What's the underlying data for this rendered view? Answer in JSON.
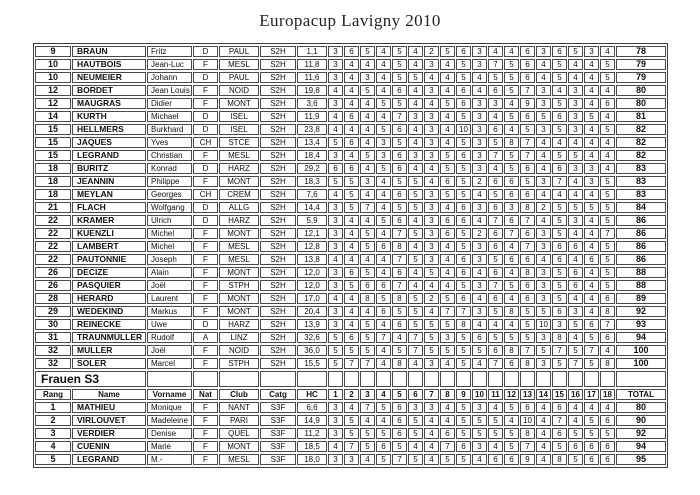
{
  "title": "Europacup Lavigny 2010",
  "columns": [
    "Rang",
    "Name",
    "Vorname",
    "Nat",
    "Club",
    "Catg",
    "HC",
    "1",
    "2",
    "3",
    "4",
    "5",
    "6",
    "7",
    "8",
    "9",
    "10",
    "11",
    "12",
    "13",
    "14",
    "15",
    "16",
    "17",
    "18",
    "TOTAL"
  ],
  "section_frauen": {
    "label": "Frauen S3"
  },
  "colors": {
    "border": "#4a4a4a",
    "text": "#101010",
    "background": "#ffffff"
  },
  "men_rows": [
    {
      "rank": "9",
      "name": "BRAUN",
      "vorname": "Fritz",
      "nat": "D",
      "club": "PAUL",
      "catg": "S2H",
      "hc": "1,1",
      "scores": [
        3,
        6,
        5,
        4,
        5,
        4,
        2,
        5,
        6,
        3,
        4,
        4,
        6,
        3,
        6,
        5,
        3,
        4
      ],
      "total": "78"
    },
    {
      "rank": "10",
      "name": "HAUTBOIS",
      "vorname": "Jean-Luc",
      "nat": "F",
      "club": "MESL",
      "catg": "S2H",
      "hc": "11,8",
      "scores": [
        3,
        4,
        4,
        4,
        5,
        4,
        3,
        4,
        5,
        3,
        7,
        5,
        6,
        4,
        5,
        4,
        4,
        5
      ],
      "total": "79"
    },
    {
      "rank": "10",
      "name": "NEUMEIER",
      "vorname": "Johann",
      "nat": "D",
      "club": "PAUL",
      "catg": "S2H",
      "hc": "11,6",
      "scores": [
        3,
        4,
        3,
        4,
        5,
        5,
        4,
        4,
        5,
        4,
        5,
        5,
        6,
        4,
        5,
        4,
        4,
        5
      ],
      "total": "79"
    },
    {
      "rank": "12",
      "name": "BORDET",
      "vorname": "Jean Louis",
      "nat": "F",
      "club": "NOID",
      "catg": "S2H",
      "hc": "19,8",
      "scores": [
        4,
        4,
        5,
        4,
        6,
        4,
        3,
        4,
        6,
        4,
        6,
        5,
        7,
        3,
        4,
        3,
        4,
        4
      ],
      "total": "80"
    },
    {
      "rank": "12",
      "name": "MAUGRAS",
      "vorname": "Didier",
      "nat": "F",
      "club": "MONT",
      "catg": "S2H",
      "hc": "3,6",
      "scores": [
        3,
        4,
        4,
        5,
        5,
        4,
        4,
        5,
        6,
        3,
        3,
        4,
        9,
        3,
        5,
        3,
        4,
        6
      ],
      "total": "80"
    },
    {
      "rank": "14",
      "name": "KURTH",
      "vorname": "Michael",
      "nat": "D",
      "club": "ISEL",
      "catg": "S2H",
      "hc": "11,9",
      "scores": [
        4,
        6,
        4,
        4,
        7,
        3,
        3,
        4,
        5,
        3,
        4,
        5,
        6,
        5,
        6,
        3,
        5,
        4
      ],
      "total": "81"
    },
    {
      "rank": "15",
      "name": "HELLMERS",
      "vorname": "Burkhard",
      "nat": "D",
      "club": "ISEL",
      "catg": "S2H",
      "hc": "23,8",
      "scores": [
        4,
        4,
        4,
        5,
        6,
        4,
        3,
        4,
        10,
        3,
        6,
        4,
        5,
        3,
        5,
        3,
        4,
        5
      ],
      "total": "82"
    },
    {
      "rank": "15",
      "name": "JAQUES",
      "vorname": "Yves",
      "nat": "CH",
      "club": "STCE",
      "catg": "S2H",
      "hc": "13,4",
      "scores": [
        5,
        6,
        4,
        3,
        5,
        4,
        3,
        4,
        5,
        3,
        5,
        8,
        7,
        4,
        4,
        4,
        4,
        4
      ],
      "total": "82"
    },
    {
      "rank": "15",
      "name": "LEGRAND",
      "vorname": "Christian",
      "nat": "F",
      "club": "MESL",
      "catg": "S2H",
      "hc": "18,4",
      "scores": [
        3,
        4,
        5,
        3,
        6,
        3,
        3,
        5,
        6,
        3,
        7,
        5,
        7,
        4,
        5,
        5,
        4,
        4
      ],
      "total": "82"
    },
    {
      "rank": "18",
      "name": "BURITZ",
      "vorname": "Konrad",
      "nat": "D",
      "club": "HARZ",
      "catg": "S2H",
      "hc": "29,2",
      "scores": [
        6,
        6,
        4,
        5,
        6,
        4,
        4,
        5,
        5,
        3,
        4,
        5,
        6,
        4,
        6,
        3,
        3,
        4
      ],
      "total": "83"
    },
    {
      "rank": "18",
      "name": "JEANNIN",
      "vorname": "Philippe",
      "nat": "F",
      "club": "MONT",
      "catg": "S2H",
      "hc": "18,3",
      "scores": [
        5,
        5,
        3,
        4,
        5,
        5,
        4,
        6,
        5,
        2,
        6,
        6,
        5,
        3,
        7,
        4,
        3,
        5
      ],
      "total": "83"
    },
    {
      "rank": "18",
      "name": "MEYLAN",
      "vorname": "Georges",
      "nat": "CH",
      "club": "CREM",
      "catg": "S2H",
      "hc": "7,6",
      "scores": [
        4,
        5,
        4,
        4,
        6,
        5,
        3,
        5,
        5,
        4,
        5,
        6,
        6,
        4,
        4,
        4,
        4,
        5
      ],
      "total": "83"
    },
    {
      "rank": "21",
      "name": "FLACH",
      "vorname": "Wolfgang",
      "nat": "D",
      "club": "ALLG",
      "catg": "S2H",
      "hc": "14,4",
      "scores": [
        3,
        5,
        7,
        4,
        5,
        5,
        3,
        4,
        6,
        3,
        6,
        3,
        8,
        2,
        5,
        5,
        5,
        5
      ],
      "total": "84"
    },
    {
      "rank": "22",
      "name": "KRAMER",
      "vorname": "Ulrich",
      "nat": "D",
      "club": "HARZ",
      "catg": "S2H",
      "hc": "5,9",
      "scores": [
        3,
        4,
        4,
        5,
        6,
        4,
        3,
        6,
        6,
        4,
        7,
        6,
        7,
        4,
        5,
        3,
        4,
        5
      ],
      "total": "86"
    },
    {
      "rank": "22",
      "name": "KUENZLI",
      "vorname": "Michel",
      "nat": "F",
      "club": "MONT",
      "catg": "S2H",
      "hc": "12,1",
      "scores": [
        3,
        4,
        5,
        4,
        7,
        5,
        3,
        6,
        5,
        2,
        6,
        7,
        6,
        3,
        5,
        4,
        4,
        7
      ],
      "total": "86"
    },
    {
      "rank": "22",
      "name": "LAMBERT",
      "vorname": "Michel",
      "nat": "F",
      "club": "MESL",
      "catg": "S2H",
      "hc": "12,8",
      "scores": [
        3,
        4,
        5,
        6,
        8,
        4,
        3,
        4,
        5,
        3,
        6,
        4,
        7,
        3,
        6,
        6,
        4,
        5
      ],
      "total": "86"
    },
    {
      "rank": "22",
      "name": "PAUTONNIE",
      "vorname": "Joseph",
      "nat": "F",
      "club": "MESL",
      "catg": "S2H",
      "hc": "13,8",
      "scores": [
        4,
        4,
        4,
        4,
        7,
        5,
        3,
        4,
        6,
        3,
        5,
        6,
        6,
        4,
        6,
        4,
        6,
        5
      ],
      "total": "86"
    },
    {
      "rank": "26",
      "name": "DECIZE",
      "vorname": "Alain",
      "nat": "F",
      "club": "MONT",
      "catg": "S2H",
      "hc": "12,0",
      "scores": [
        3,
        6,
        5,
        4,
        6,
        4,
        5,
        4,
        6,
        4,
        6,
        4,
        8,
        3,
        5,
        6,
        4,
        5
      ],
      "total": "88"
    },
    {
      "rank": "26",
      "name": "PASQUIER",
      "vorname": "Joël",
      "nat": "F",
      "club": "STPH",
      "catg": "S2H",
      "hc": "12,0",
      "scores": [
        3,
        5,
        6,
        6,
        7,
        4,
        4,
        4,
        5,
        3,
        7,
        5,
        6,
        3,
        5,
        6,
        4,
        5
      ],
      "total": "88"
    },
    {
      "rank": "28",
      "name": "HERARD",
      "vorname": "Laurent",
      "nat": "F",
      "club": "MONT",
      "catg": "S2H",
      "hc": "17,0",
      "scores": [
        4,
        4,
        8,
        5,
        8,
        5,
        2,
        5,
        6,
        4,
        6,
        4,
        6,
        3,
        5,
        4,
        4,
        6
      ],
      "total": "89"
    },
    {
      "rank": "29",
      "name": "WEDEKIND",
      "vorname": "Markus",
      "nat": "F",
      "club": "MONT",
      "catg": "S2H",
      "hc": "20,4",
      "scores": [
        3,
        4,
        4,
        6,
        5,
        5,
        4,
        7,
        7,
        3,
        5,
        8,
        5,
        5,
        6,
        3,
        4,
        8
      ],
      "total": "92"
    },
    {
      "rank": "30",
      "name": "REINECKE",
      "vorname": "Uwe",
      "nat": "D",
      "club": "HARZ",
      "catg": "S2H",
      "hc": "13,9",
      "scores": [
        3,
        4,
        5,
        4,
        6,
        5,
        5,
        5,
        8,
        4,
        4,
        4,
        5,
        10,
        3,
        5,
        6,
        7
      ],
      "total": "93"
    },
    {
      "rank": "31",
      "name": "TRAUNMÜLLER",
      "vorname": "Rudolf",
      "nat": "A",
      "club": "LINZ",
      "catg": "S2H",
      "hc": "32,6",
      "scores": [
        5,
        6,
        5,
        7,
        4,
        7,
        5,
        3,
        5,
        6,
        5,
        5,
        5,
        3,
        8,
        4,
        5,
        6
      ],
      "total": "94"
    },
    {
      "rank": "32",
      "name": "MULLER",
      "vorname": "Joël",
      "nat": "F",
      "club": "NOID",
      "catg": "S2H",
      "hc": "36,0",
      "scores": [
        5,
        5,
        5,
        4,
        5,
        7,
        5,
        5,
        5,
        5,
        6,
        8,
        7,
        5,
        7,
        5,
        7,
        4
      ],
      "total": "100"
    },
    {
      "rank": "32",
      "name": "SOLER",
      "vorname": "Marcel",
      "nat": "F",
      "club": "STPH",
      "catg": "S2H",
      "hc": "15,5",
      "scores": [
        5,
        7,
        7,
        4,
        8,
        4,
        3,
        4,
        5,
        4,
        7,
        6,
        8,
        3,
        5,
        7,
        5,
        8
      ],
      "total": "100"
    }
  ],
  "women_rows": [
    {
      "rank": "1",
      "name": "MATHIEU",
      "vorname": "Monique",
      "nat": "F",
      "club": "NANT",
      "catg": "S3F",
      "hc": "6,6",
      "scores": [
        3,
        4,
        7,
        5,
        6,
        3,
        3,
        4,
        5,
        3,
        4,
        5,
        6,
        4,
        6,
        4,
        4,
        4
      ],
      "total": "80"
    },
    {
      "rank": "2",
      "name": "VIRLOUVET",
      "vorname": "Madeleine",
      "nat": "F",
      "club": "PARI",
      "catg": "S3F",
      "hc": "14,9",
      "scores": [
        3,
        5,
        4,
        4,
        6,
        5,
        4,
        4,
        5,
        5,
        5,
        4,
        10,
        4,
        7,
        4,
        5,
        6
      ],
      "total": "90"
    },
    {
      "rank": "3",
      "name": "VERDIER",
      "vorname": "Denise",
      "nat": "F",
      "club": "QUEL",
      "catg": "S3F",
      "hc": "11,2",
      "scores": [
        3,
        5,
        5,
        5,
        6,
        5,
        4,
        6,
        5,
        5,
        5,
        5,
        8,
        4,
        6,
        5,
        5,
        5
      ],
      "total": "92"
    },
    {
      "rank": "4",
      "name": "CUENIN",
      "vorname": "Marie",
      "nat": "F",
      "club": "MONT",
      "catg": "S3F",
      "hc": "18,5",
      "scores": [
        4,
        7,
        5,
        6,
        5,
        4,
        4,
        7,
        6,
        3,
        4,
        5,
        7,
        4,
        5,
        6,
        6,
        6
      ],
      "total": "94"
    },
    {
      "rank": "5",
      "name": "LEGRAND",
      "vorname": "M.-",
      "nat": "F",
      "club": "MESL",
      "catg": "S3F",
      "hc": "18,0",
      "scores": [
        3,
        3,
        4,
        5,
        7,
        5,
        4,
        5,
        5,
        4,
        6,
        6,
        9,
        4,
        8,
        5,
        6,
        6
      ],
      "total": "95"
    }
  ]
}
